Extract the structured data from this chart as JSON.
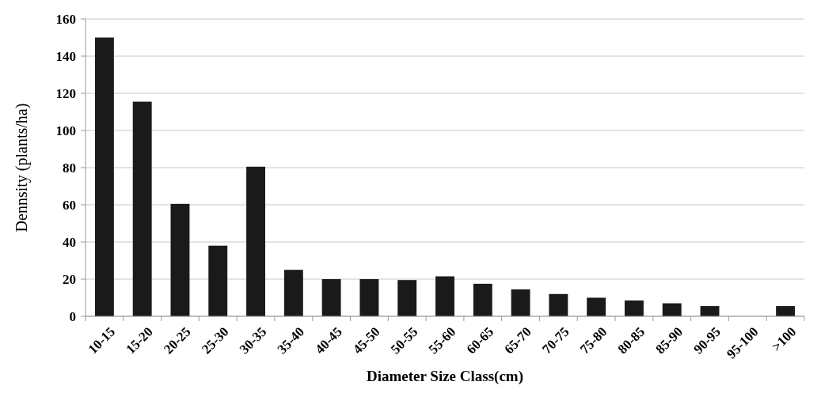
{
  "chart_data": {
    "type": "bar",
    "xlabel": "Diameter Size Class(cm)",
    "ylabel": "Dennsity (plants/ha)",
    "categories": [
      "10-15",
      "15-20",
      "20-25",
      "25-30",
      "30-35",
      "35-40",
      "40-45",
      "45-50",
      "50-55",
      "55-60",
      "60-65",
      "65-70",
      "70-75",
      "75-80",
      "80-85",
      "85-90",
      "90-95",
      "95-100",
      ">100"
    ],
    "values": [
      150,
      115.5,
      60.5,
      38,
      80.5,
      25,
      20,
      20,
      19.5,
      21.5,
      17.5,
      14.5,
      12,
      10,
      8.5,
      7,
      5.5,
      0,
      5.5
    ],
    "color": "#1a1a1a",
    "ylim": [
      0,
      160
    ],
    "yticks": [
      0,
      20,
      40,
      60,
      80,
      100,
      120,
      140,
      160
    ],
    "grid": "y"
  }
}
